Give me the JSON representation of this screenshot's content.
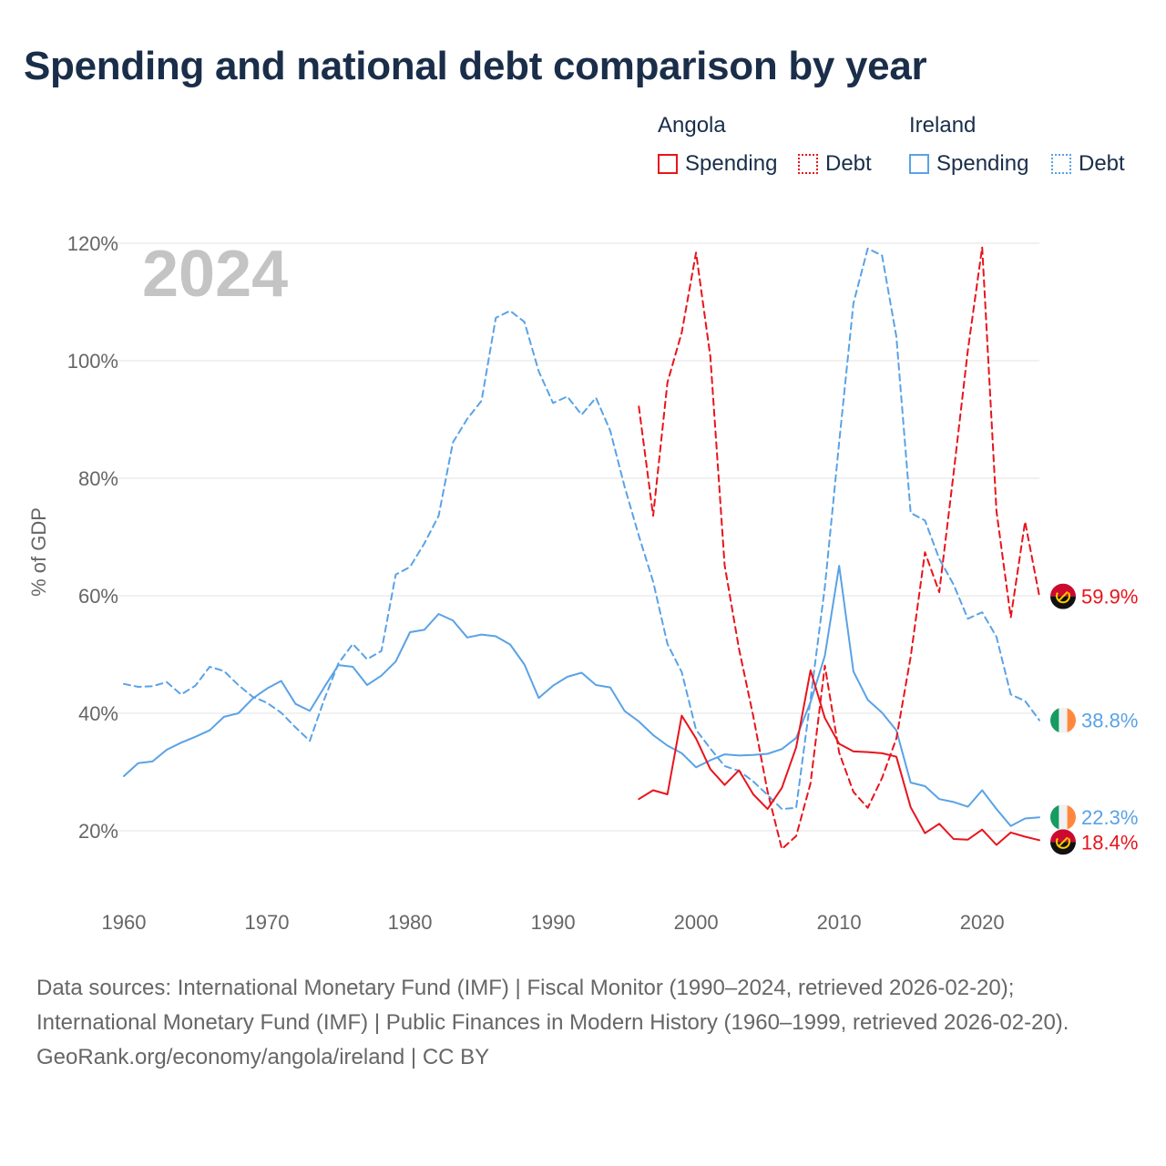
{
  "title": "Spending and national debt comparison by year",
  "legend": {
    "groups": [
      {
        "country": "Angola",
        "color": "#e8141c",
        "items": [
          {
            "label": "Spending",
            "style": "solid"
          },
          {
            "label": "Debt",
            "style": "dotted"
          }
        ]
      },
      {
        "country": "Ireland",
        "color": "#5aa2e6",
        "items": [
          {
            "label": "Spending",
            "style": "solid"
          },
          {
            "label": "Debt",
            "style": "dotted"
          }
        ]
      }
    ]
  },
  "chart_data": {
    "type": "line",
    "title": "Spending and national debt comparison by year",
    "watermark_year": "2024",
    "ylabel": "% of GDP",
    "xlabel": "",
    "xlim": [
      1960,
      2024
    ],
    "ylim": [
      10,
      120
    ],
    "x_ticks": [
      1960,
      1970,
      1980,
      1990,
      2000,
      2010,
      2020
    ],
    "y_ticks": [
      20,
      40,
      60,
      80,
      100,
      120
    ],
    "y_tick_labels": [
      "20%",
      "40%",
      "60%",
      "80%",
      "100%",
      "120%"
    ],
    "grid": true,
    "series": [
      {
        "name": "Ireland Debt",
        "country": "Ireland",
        "metric": "Debt",
        "color": "#5aa2e6",
        "dash": "dashed",
        "x": [
          1960,
          1961,
          1962,
          1963,
          1964,
          1965,
          1966,
          1967,
          1968,
          1969,
          1970,
          1971,
          1972,
          1973,
          1974,
          1975,
          1976,
          1977,
          1978,
          1979,
          1980,
          1981,
          1982,
          1983,
          1984,
          1985,
          1986,
          1987,
          1988,
          1989,
          1990,
          1991,
          1992,
          1993,
          1994,
          1995,
          1996,
          1997,
          1998,
          1999,
          2000,
          2001,
          2002,
          2003,
          2004,
          2005,
          2006,
          2007,
          2008,
          2009,
          2010,
          2011,
          2012,
          2013,
          2014,
          2015,
          2016,
          2017,
          2018,
          2019,
          2020,
          2021,
          2022,
          2023,
          2024
        ],
        "values": [
          45,
          44.5,
          44.6,
          45.3,
          43.2,
          44.7,
          47.9,
          47.2,
          44.8,
          42.8,
          41.8,
          40.1,
          37.6,
          35.3,
          42.3,
          48.5,
          51.8,
          49.2,
          50.6,
          63.6,
          64.9,
          68.9,
          73.6,
          86.1,
          90.1,
          93.2,
          107.3,
          108.5,
          106.6,
          98.2,
          92.8,
          93.9,
          90.8,
          93.7,
          88.1,
          78.6,
          70.2,
          62.4,
          51.8,
          47,
          37.2,
          34,
          31,
          30.2,
          28.4,
          26.1,
          23.7,
          23.9,
          42.4,
          61.5,
          86.1,
          109.8,
          119.1,
          117.9,
          104.1,
          74.1,
          72.8,
          66.3,
          61.9,
          56.1,
          57.2,
          53,
          43.2,
          42.1,
          38.8
        ]
      },
      {
        "name": "Ireland Spending",
        "country": "Ireland",
        "metric": "Spending",
        "color": "#5aa2e6",
        "dash": "solid",
        "x": [
          1960,
          1961,
          1962,
          1963,
          1964,
          1965,
          1966,
          1967,
          1968,
          1969,
          1970,
          1971,
          1972,
          1973,
          1974,
          1975,
          1976,
          1977,
          1978,
          1979,
          1980,
          1981,
          1982,
          1983,
          1984,
          1985,
          1986,
          1987,
          1988,
          1989,
          1990,
          1991,
          1992,
          1993,
          1994,
          1995,
          1996,
          1997,
          1998,
          1999,
          2000,
          2001,
          2002,
          2003,
          2004,
          2005,
          2006,
          2007,
          2008,
          2009,
          2010,
          2011,
          2012,
          2013,
          2014,
          2015,
          2016,
          2017,
          2018,
          2019,
          2020,
          2021,
          2022,
          2023,
          2024
        ],
        "values": [
          29.3,
          31.5,
          31.8,
          33.8,
          35,
          36,
          37.1,
          39.4,
          40,
          42.5,
          44.2,
          45.5,
          41.6,
          40.4,
          44.4,
          48.2,
          47.9,
          44.8,
          46.4,
          48.8,
          53.8,
          54.2,
          56.9,
          55.8,
          52.9,
          53.4,
          53.1,
          51.7,
          48.3,
          42.6,
          44.7,
          46.2,
          46.9,
          44.8,
          44.4,
          40.4,
          38.6,
          36.3,
          34.5,
          33.2,
          30.8,
          32,
          33,
          32.8,
          32.9,
          33.1,
          33.9,
          35.8,
          41.9,
          49.8,
          65.1,
          47.1,
          42.3,
          40.1,
          37.1,
          28.2,
          27.6,
          25.4,
          24.9,
          24.1,
          26.9,
          23.7,
          20.8,
          22.1,
          22.3
        ]
      },
      {
        "name": "Angola Debt",
        "country": "Angola",
        "metric": "Debt",
        "color": "#e8141c",
        "dash": "dashed",
        "x": [
          1996,
          1997,
          1998,
          1999,
          2000,
          2001,
          2002,
          2003,
          2004,
          2005,
          2006,
          2007,
          2008,
          2009,
          2010,
          2011,
          2012,
          2013,
          2014,
          2015,
          2016,
          2017,
          2018,
          2019,
          2020,
          2021,
          2022,
          2023,
          2024
        ],
        "values": [
          92.2,
          73.6,
          96.3,
          104.8,
          118.4,
          100.7,
          65.2,
          51,
          39.5,
          26.7,
          16.9,
          19.1,
          28.1,
          48.1,
          33.3,
          26.6,
          23.9,
          29,
          35.7,
          49.6,
          67.4,
          60.6,
          80.8,
          101.8,
          119.3,
          74.4,
          56.3,
          72.6,
          59.9
        ]
      },
      {
        "name": "Angola Spending",
        "country": "Angola",
        "metric": "Spending",
        "color": "#e8141c",
        "dash": "solid",
        "x": [
          1996,
          1997,
          1998,
          1999,
          2000,
          2001,
          2002,
          2003,
          2004,
          2005,
          2006,
          2007,
          2008,
          2009,
          2010,
          2011,
          2012,
          2013,
          2014,
          2015,
          2016,
          2017,
          2018,
          2019,
          2020,
          2021,
          2022,
          2023,
          2024
        ],
        "values": [
          25.4,
          26.9,
          26.2,
          39.6,
          35.7,
          30.5,
          27.8,
          30.3,
          26.2,
          23.7,
          27.3,
          34.2,
          47.3,
          39.2,
          34.8,
          33.5,
          33.4,
          33.2,
          32.6,
          24,
          19.6,
          21.2,
          18.6,
          18.5,
          20.2,
          17.6,
          19.7,
          19,
          18.4
        ]
      }
    ],
    "end_labels": [
      {
        "series": "Angola Debt",
        "text": "59.9%",
        "flag": "angola",
        "color": "#e8141c",
        "value": 59.9
      },
      {
        "series": "Ireland Debt",
        "text": "38.8%",
        "flag": "ireland",
        "color": "#5aa2e6",
        "value": 38.8
      },
      {
        "series": "Ireland Spending",
        "text": "22.3%",
        "flag": "ireland",
        "color": "#5aa2e6",
        "value": 22.3
      },
      {
        "series": "Angola Spending",
        "text": "18.4%",
        "flag": "angola",
        "color": "#e8141c",
        "value": 18.4
      }
    ]
  },
  "footer": {
    "sources": "Data sources: International Monetary Fund (IMF) | Fiscal Monitor (1990–2024, retrieved 2026-02-20); International Monetary Fund (IMF) | Public Finances in Modern History (1960–1999, retrieved 2026-02-20).",
    "credit": "GeoRank.org/economy/angola/ireland | CC BY"
  }
}
